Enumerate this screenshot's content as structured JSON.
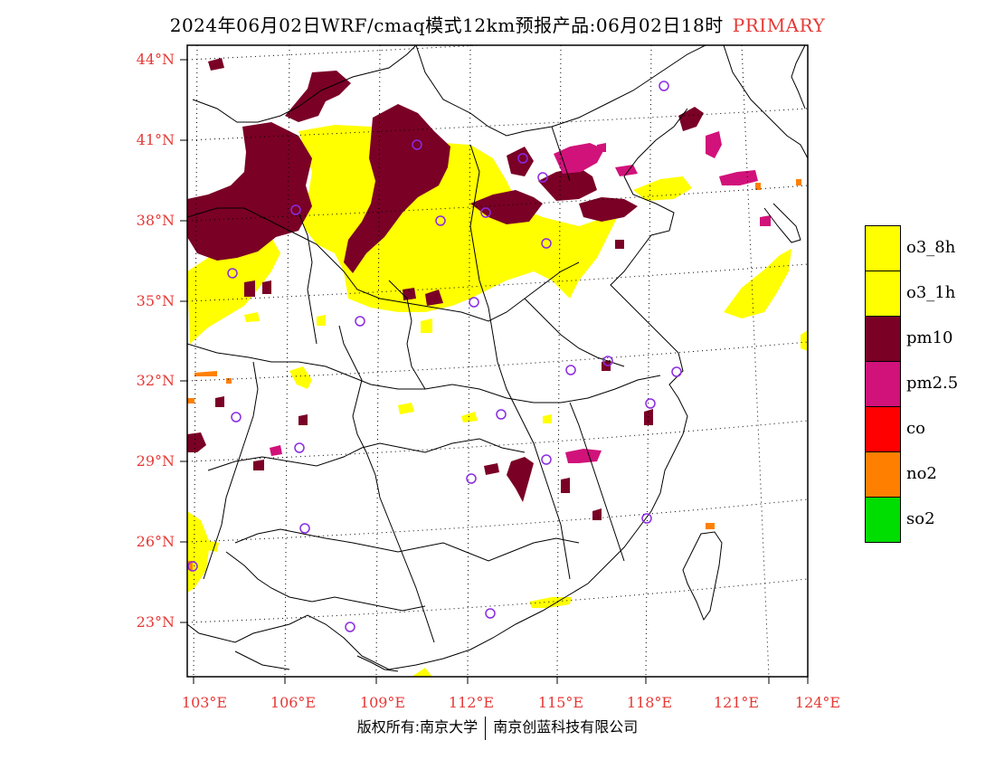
{
  "title": {
    "main": "2024年06月02日WRF/cmaq模式12km预报产品:06月02日18时",
    "tag": "PRIMARY"
  },
  "colors": {
    "o3_8h": "#ffff00",
    "o3_1h": "#ffff00",
    "pm10": "#7a0026",
    "pm2_5": "#d1127a",
    "co": "#ff0000",
    "no2": "#ff8000",
    "so2": "#00dd00",
    "label": "#e53935",
    "station": "#8a2be2"
  },
  "axes": {
    "lat_labels": [
      "44°N",
      "41°N",
      "38°N",
      "35°N",
      "32°N",
      "29°N",
      "26°N",
      "23°N"
    ],
    "lon_labels": [
      "103°E",
      "106°E",
      "109°E",
      "112°E",
      "115°E",
      "118°E",
      "121°E",
      "124°E"
    ]
  },
  "legend": [
    {
      "label": "o3_8h",
      "color": "#ffff00"
    },
    {
      "label": "o3_1h",
      "color": "#ffff00"
    },
    {
      "label": "pm10",
      "color": "#7a0026"
    },
    {
      "label": "pm2.5",
      "color": "#d1127a"
    },
    {
      "label": "co",
      "color": "#ff0000"
    },
    {
      "label": "no2",
      "color": "#ff8000"
    },
    {
      "label": "so2",
      "color": "#00dd00"
    }
  ],
  "footer": {
    "left": "版权所有:南京大学",
    "right": "南京创蓝科技有限公司"
  }
}
